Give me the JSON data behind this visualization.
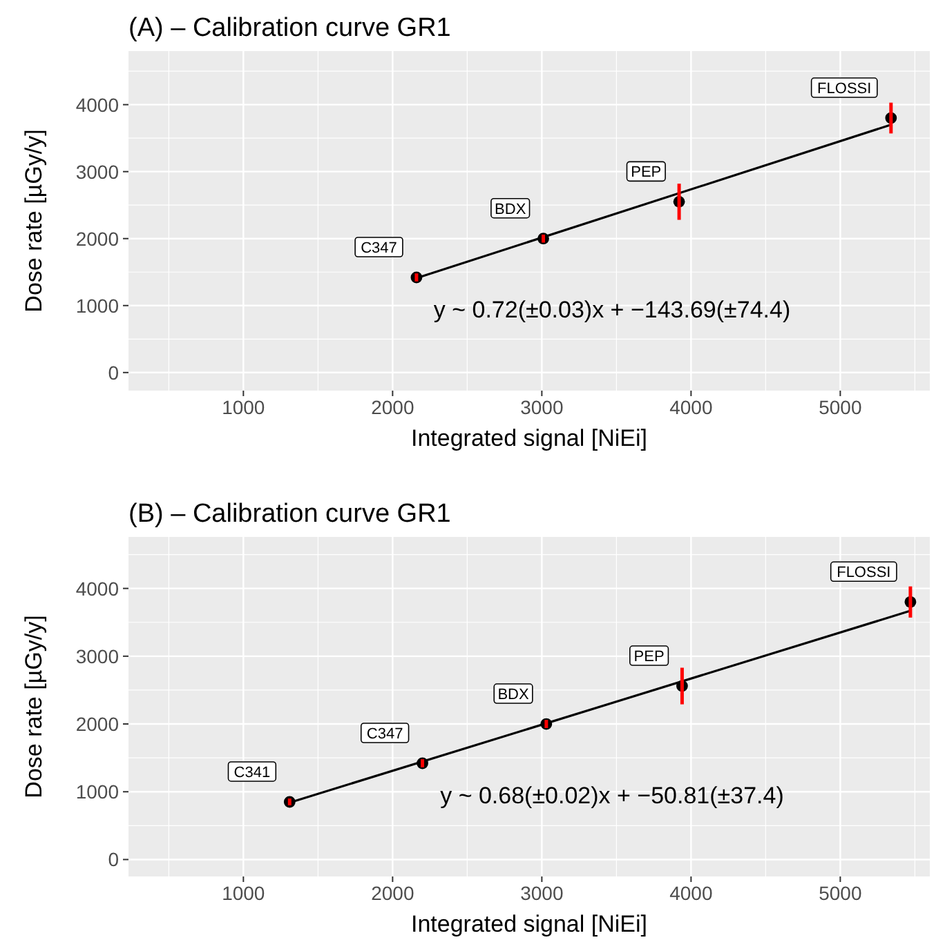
{
  "chart_data": [
    {
      "type": "scatter",
      "title": "(A) – Calibration curve GR1",
      "xlabel": "Integrated signal [NiEi]",
      "ylabel": "Dose rate [µGy/y]",
      "xlim": [
        230,
        5600
      ],
      "ylim": [
        -270,
        4800
      ],
      "xticks": [
        1000,
        2000,
        3000,
        4000,
        5000
      ],
      "yticks": [
        0,
        1000,
        2000,
        3000,
        4000
      ],
      "grid": true,
      "series": [
        {
          "marker": "circle",
          "color": "#000000",
          "x": [
            2160,
            3010,
            3920,
            5340
          ],
          "values": [
            1420,
            2000,
            2550,
            3800
          ],
          "errors": [
            60,
            60,
            270,
            230
          ]
        },
        {
          "type": "line",
          "color": "#000000",
          "x": [
            2160,
            5340
          ],
          "values": [
            1410,
            3700
          ]
        }
      ],
      "annotations": [
        {
          "text": "C347",
          "x": 2160,
          "y": 1420
        },
        {
          "text": "BDX",
          "x": 3010,
          "y": 2000
        },
        {
          "text": "PEP",
          "x": 3920,
          "y": 2550
        },
        {
          "text": "FLOSSI",
          "x": 5340,
          "y": 3800
        },
        "y ~ 0.72(±0.03)x + −143.69(±74.4)"
      ]
    },
    {
      "type": "scatter",
      "title": "(B) – Calibration curve GR1",
      "xlabel": "Integrated signal [NiEi]",
      "ylabel": "Dose rate [µGy/y]",
      "xlim": [
        230,
        5600
      ],
      "ylim": [
        -250,
        4760
      ],
      "xticks": [
        1000,
        2000,
        3000,
        4000,
        5000
      ],
      "yticks": [
        0,
        1000,
        2000,
        3000,
        4000
      ],
      "grid": true,
      "series": [
        {
          "marker": "circle",
          "color": "#000000",
          "x": [
            1310,
            2200,
            3030,
            3940,
            5470
          ],
          "values": [
            850,
            1420,
            2000,
            2560,
            3800
          ],
          "errors": [
            50,
            60,
            60,
            270,
            230
          ]
        },
        {
          "type": "line",
          "color": "#000000",
          "x": [
            1310,
            5470
          ],
          "values": [
            840,
            3670
          ]
        }
      ],
      "annotations": [
        {
          "text": "C341",
          "x": 1310,
          "y": 850
        },
        {
          "text": "C347",
          "x": 2200,
          "y": 1420
        },
        {
          "text": "BDX",
          "x": 3030,
          "y": 2000
        },
        {
          "text": "PEP",
          "x": 3940,
          "y": 2560
        },
        {
          "text": "FLOSSI",
          "x": 5470,
          "y": 3800
        },
        "y ~ 0.68(±0.02)x + −50.81(±37.4)"
      ]
    }
  ]
}
